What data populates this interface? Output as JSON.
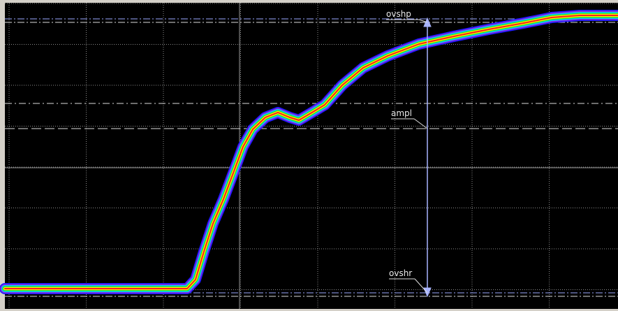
{
  "markers": {
    "top": "ovshp",
    "middle": "ampl",
    "bottom": "ovshr"
  }
}
